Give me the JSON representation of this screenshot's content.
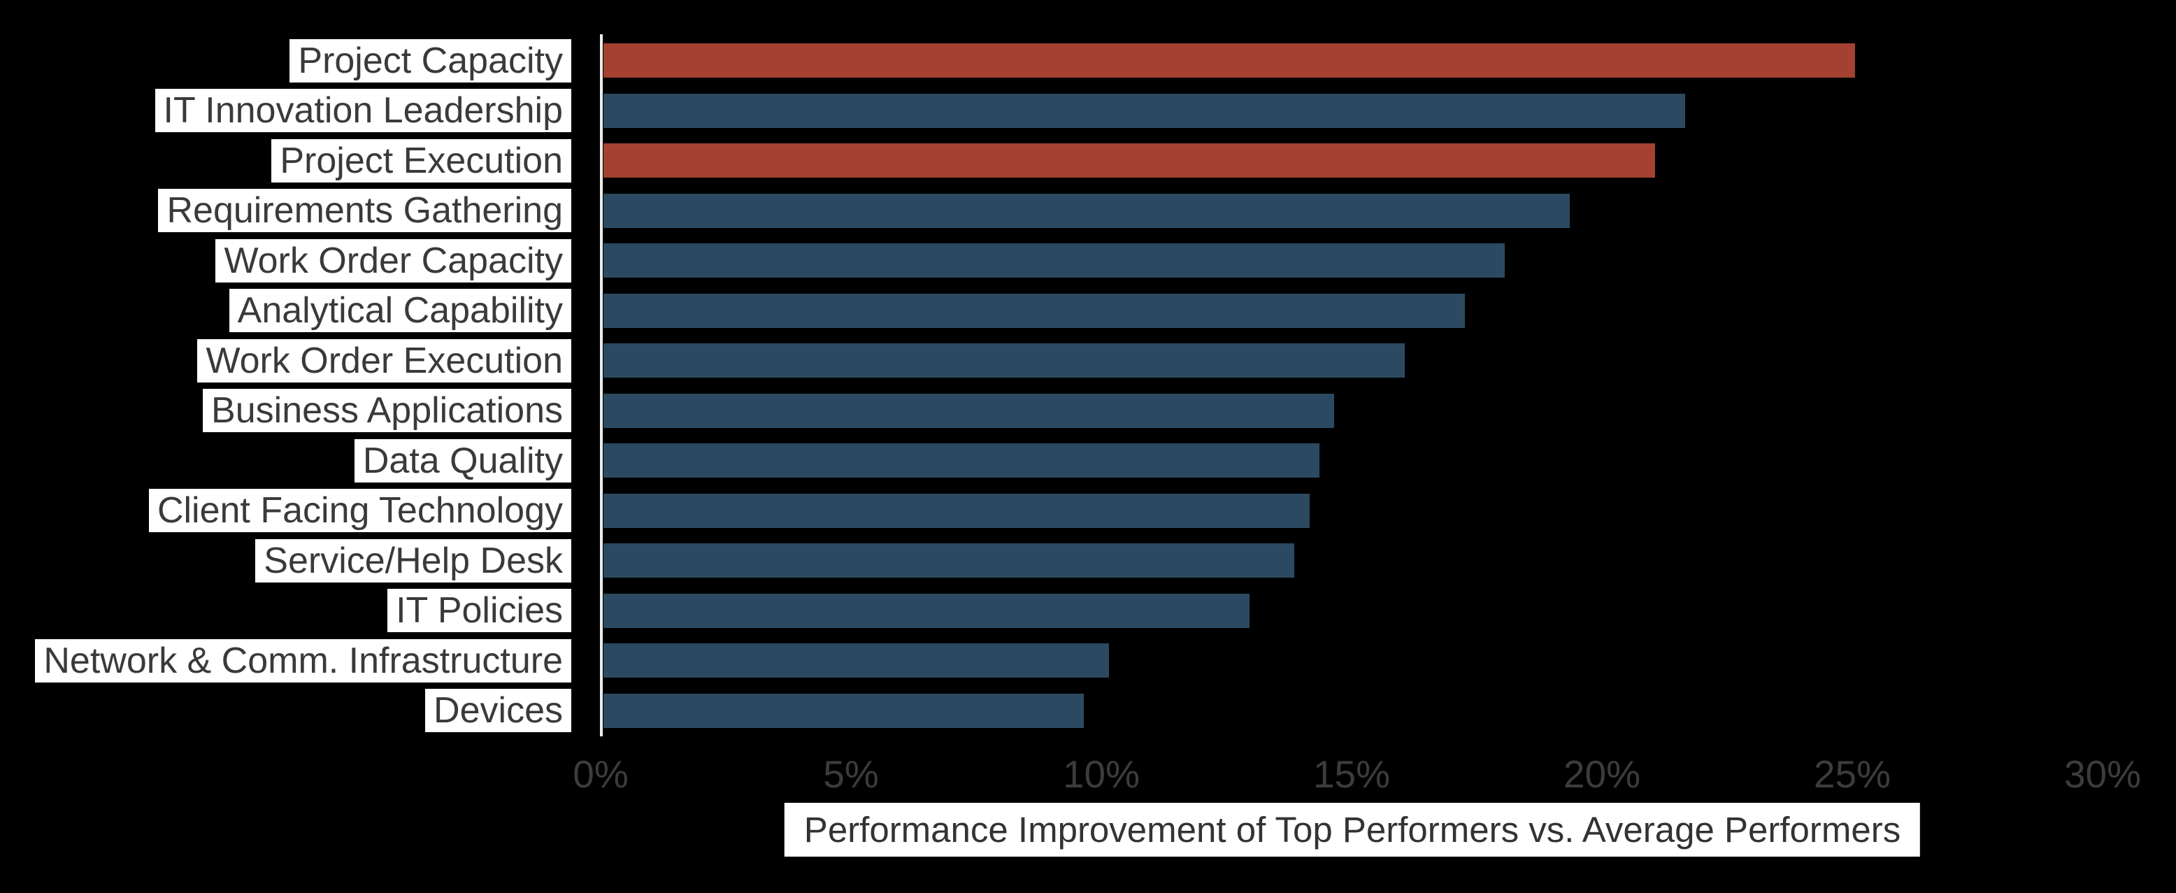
{
  "chart_data": {
    "type": "bar",
    "orientation": "horizontal",
    "title": "",
    "xlabel": "Performance Improvement of Top Performers vs. Average Performers",
    "ylabel": "",
    "categories": [
      "Project Capacity",
      "IT Innovation Leadership",
      "Project Execution",
      "Requirements Gathering",
      "Work Order Capacity",
      "Analytical Capability",
      "Work Order Execution",
      "Business Applications",
      "Data Quality",
      "Client Facing Technology",
      "Service/Help Desk",
      "IT Policies",
      "Network & Comm. Infrastructure",
      "Devices"
    ],
    "values": [
      25.0,
      21.6,
      21.0,
      19.3,
      18.0,
      17.2,
      16.0,
      14.6,
      14.3,
      14.1,
      13.8,
      12.9,
      10.1,
      9.6
    ],
    "unit": "%",
    "highlight_indices": [
      0,
      2
    ],
    "x_ticks": [
      "0%",
      "5%",
      "10%",
      "15%",
      "20%",
      "25%",
      "30%"
    ],
    "x_tick_values": [
      0,
      5,
      10,
      15,
      20,
      25,
      30
    ],
    "xlim": [
      0,
      30
    ],
    "grid": false,
    "legend": null,
    "colors": {
      "background": "#000000",
      "default_bar": "#2B4A61",
      "highlight_bar": "#A44130",
      "label_bg": "#FFFFFF",
      "label_text": "#3A3A3A",
      "tick_text": "#3C3C3C",
      "caption_text": "#333333",
      "axis_line": "#ECECEC"
    }
  }
}
